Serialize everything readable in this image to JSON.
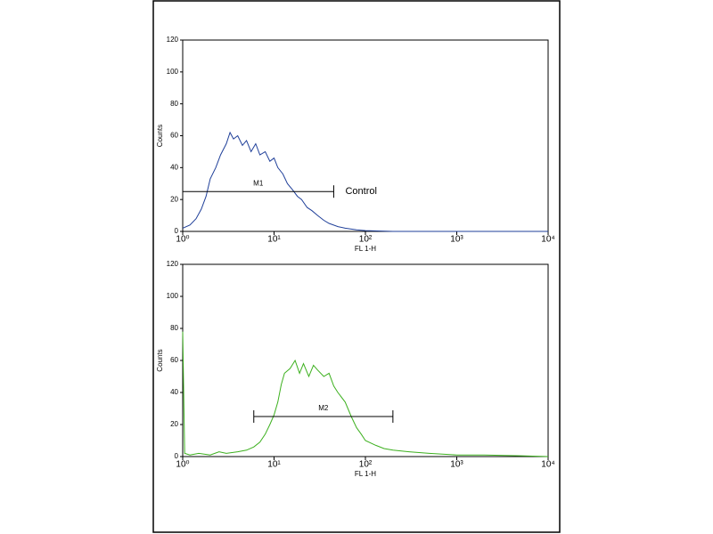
{
  "chart_data": [
    {
      "type": "line",
      "x_label": "FL 1-H",
      "y_label": "Counts",
      "log_x": true,
      "xlim": [
        1,
        10000
      ],
      "xticks": [
        {
          "value": 1,
          "label": "10⁰"
        },
        {
          "value": 10,
          "label": "10¹"
        },
        {
          "value": 100,
          "label": "10²"
        },
        {
          "value": 1000,
          "label": "10³"
        },
        {
          "value": 10000,
          "label": "10⁴"
        }
      ],
      "ylim": [
        0,
        120
      ],
      "yticks": [
        0,
        20,
        40,
        60,
        80,
        100,
        120
      ],
      "series": [
        {
          "color": "#1f3f99",
          "x": [
            1,
            1.2,
            1.4,
            1.6,
            1.8,
            2,
            2.3,
            2.6,
            3,
            3.3,
            3.6,
            4,
            4.5,
            5,
            5.6,
            6.3,
            7,
            8,
            9,
            10,
            11,
            12.5,
            14,
            16,
            18,
            20,
            23,
            26,
            30,
            35,
            40,
            50,
            60,
            80,
            100,
            200,
            500,
            1000,
            3000,
            10000
          ],
          "values": [
            2,
            4,
            8,
            14,
            22,
            33,
            40,
            48,
            55,
            62,
            58,
            60,
            54,
            57,
            50,
            55,
            48,
            50,
            44,
            46,
            40,
            36,
            30,
            26,
            22,
            20,
            15,
            13,
            10,
            7,
            5,
            3,
            2,
            1,
            0.5,
            0,
            0,
            0,
            0,
            0
          ]
        }
      ],
      "markers": [
        {
          "label": "M1",
          "range": [
            1,
            45
          ],
          "y": 25,
          "annotation": "Control"
        }
      ]
    },
    {
      "type": "line",
      "x_label": "FL 1-H",
      "y_label": "Counts",
      "log_x": true,
      "xlim": [
        1,
        10000
      ],
      "xticks": [
        {
          "value": 1,
          "label": "10⁰"
        },
        {
          "value": 10,
          "label": "10¹"
        },
        {
          "value": 100,
          "label": "10²"
        },
        {
          "value": 1000,
          "label": "10³"
        },
        {
          "value": 10000,
          "label": "10⁴"
        }
      ],
      "ylim": [
        0,
        120
      ],
      "yticks": [
        0,
        20,
        40,
        60,
        80,
        100,
        120
      ],
      "series": [
        {
          "color": "#3cb01e",
          "x": [
            1,
            1.05,
            1.2,
            1.5,
            2,
            2.5,
            3,
            4,
            5,
            6,
            7,
            8,
            9,
            10,
            11,
            12,
            13,
            15,
            17,
            19,
            21,
            24,
            27,
            30,
            35,
            40,
            45,
            50,
            60,
            70,
            80,
            90,
            100,
            130,
            160,
            200,
            300,
            500,
            1000,
            2000,
            5000,
            10000
          ],
          "values": [
            78,
            2,
            1,
            2,
            1,
            3,
            2,
            3,
            4,
            6,
            9,
            14,
            20,
            26,
            34,
            45,
            52,
            55,
            60,
            52,
            58,
            50,
            57,
            54,
            50,
            52,
            44,
            40,
            34,
            25,
            18,
            14,
            10,
            7,
            5,
            4,
            3,
            2,
            1,
            1,
            0.5,
            0
          ]
        }
      ],
      "markers": [
        {
          "label": "M2",
          "range": [
            6,
            200
          ],
          "y": 25
        }
      ]
    }
  ]
}
